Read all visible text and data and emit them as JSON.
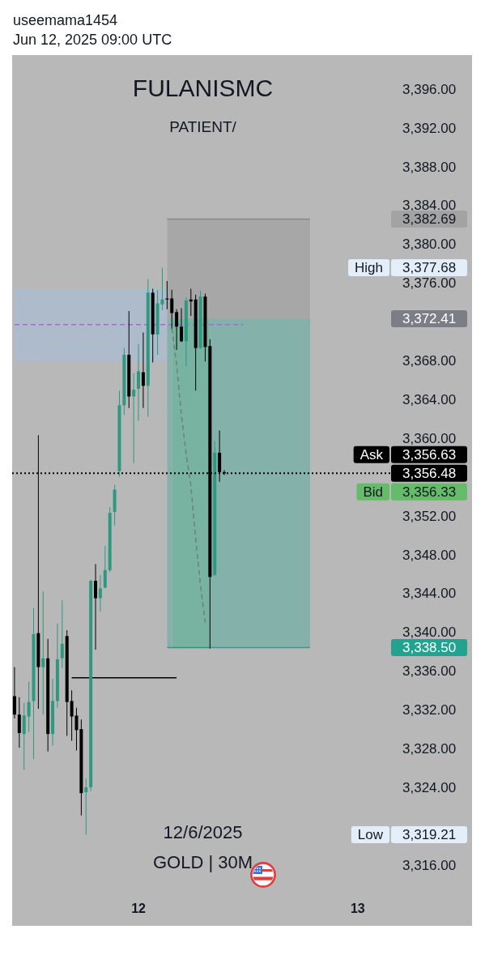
{
  "chart_data": {
    "type": "candlestick",
    "title": "FULANISMC",
    "subtitle": "PATIENT/",
    "categories": [
      null,
      null,
      null,
      null,
      null,
      null,
      null,
      null,
      null,
      null,
      null,
      null,
      null,
      null,
      null,
      null,
      null,
      null,
      null,
      null,
      null,
      null,
      null,
      null,
      null,
      null,
      "12",
      null,
      null,
      null,
      null,
      null,
      null,
      null,
      null,
      null,
      null,
      null,
      null,
      null,
      null,
      null,
      null,
      null,
      null,
      null,
      null,
      null,
      null,
      null,
      null,
      null,
      null,
      null,
      null,
      null,
      null,
      null,
      null,
      null,
      null,
      null,
      null,
      null,
      null,
      null,
      null,
      null,
      null,
      null,
      null,
      null,
      "13",
      null,
      null,
      null,
      null,
      null,
      null,
      null
    ],
    "series": [
      {
        "ohlc": [
          [
            3333.5,
            3336.5,
            3331.2,
            3331.6
          ],
          [
            3331.6,
            3333.4,
            3328.2,
            3329.7
          ],
          [
            3329.6,
            3332.8,
            3325.9,
            3331.5
          ],
          [
            3331.4,
            3335.0,
            3329.8,
            3332.9
          ],
          [
            3333.0,
            3342.6,
            3327.0,
            3339.9
          ],
          [
            3340.0,
            3360.4,
            3332.2,
            3336.5
          ],
          [
            3336.5,
            3344.3,
            3331.6,
            3337.4
          ],
          [
            3337.4,
            3339.4,
            3327.8,
            3329.6
          ],
          [
            3329.6,
            3335.3,
            3328.4,
            3333.0
          ],
          [
            3333.0,
            3341.0,
            3332.3,
            3337.3
          ],
          [
            3337.4,
            3343.4,
            3336.4,
            3338.9
          ],
          [
            3339.7,
            3340.3,
            3329.4,
            3332.9
          ],
          [
            3333.0,
            3334.1,
            3328.9,
            3331.4
          ],
          [
            3331.5,
            3332.3,
            3327.9,
            3330.0
          ],
          [
            3330.1,
            3331.1,
            3321.2,
            3323.5
          ],
          [
            3323.6,
            3325.0,
            3319.21,
            3324.1
          ],
          [
            3324.1,
            3345.5,
            3323.7,
            3345.4
          ],
          [
            3345.4,
            3347.1,
            3338.3,
            3343.6
          ],
          [
            3343.6,
            3346.0,
            3342.2,
            3344.6
          ],
          [
            3344.7,
            3349.0,
            3344.6,
            3346.5
          ],
          [
            3346.5,
            3353.0,
            3346.3,
            3352.4
          ],
          [
            3352.5,
            3355.3,
            3351.1,
            3354.8
          ],
          [
            3356.7,
            3365.0,
            3356.1,
            3363.5
          ],
          [
            3363.5,
            3369.4,
            3362.5,
            3368.7
          ],
          [
            3368.7,
            3373.2,
            3363.2,
            3364.4
          ],
          [
            3364.4,
            3366.8,
            3357.5,
            3365.1
          ],
          [
            3365.2,
            3369.8,
            3361.9,
            3367.0
          ],
          [
            3366.9,
            3371.0,
            3363.2,
            3365.5
          ],
          [
            3365.5,
            3376.5,
            3362.3,
            3375.1
          ],
          [
            3375.1,
            3375.5,
            3367.9,
            3370.8
          ],
          [
            3370.8,
            3375.4,
            3368.7,
            3374.0
          ],
          [
            3373.9,
            3377.68,
            3373.3,
            3374.4
          ],
          [
            3374.5,
            3376.3,
            3373.4,
            3374.4
          ],
          [
            3374.5,
            3375.4,
            3371.4,
            3373.0
          ],
          [
            3373.1,
            3373.4,
            3369.2,
            3371.6
          ],
          [
            3371.6,
            3373.5,
            3370.0,
            3370.1
          ],
          [
            3370.1,
            3374.6,
            3367.5,
            3374.3
          ],
          [
            3374.4,
            3375.5,
            3372.7,
            3374.2
          ],
          [
            3374.4,
            3374.9,
            3365.0,
            3369.4
          ],
          [
            3369.4,
            3375.3,
            3369.3,
            3374.7
          ],
          [
            3374.7,
            3375.0,
            3368.0,
            3369.5
          ],
          [
            3369.6,
            3370.3,
            3338.4,
            3345.8
          ],
          [
            3346.0,
            3359.8,
            3345.9,
            3358.6
          ],
          [
            3358.6,
            3360.9,
            3355.6,
            3356.6
          ],
          [
            3356.6,
            3356.8,
            3356.3,
            3356.48
          ],
          null,
          null,
          null,
          null,
          null,
          null,
          null,
          null,
          null,
          null,
          null,
          null,
          null,
          null,
          null,
          null,
          null,
          null,
          null,
          null,
          null,
          null,
          null,
          null,
          null,
          null,
          null,
          null,
          null,
          null,
          null,
          null,
          null,
          null,
          null
        ],
        "colors": [
          "#000000",
          "#000000",
          "#2e9980",
          "#2e9980",
          "#2e9980",
          "#000000",
          "#2e9980",
          "#000000",
          "#2e9980",
          "#2e9980",
          "#2e9980",
          "#000000",
          "#000000",
          "#000000",
          "#000000",
          "#2e9980",
          "#2e9980",
          "#000000",
          "#2e9980",
          "#2e9980",
          "#2e9980",
          "#2e9980",
          "#2e9980",
          "#2e9980",
          "#000000",
          "#2e9980",
          "#2e9980",
          "#000000",
          "#2e9980",
          "#000000",
          "#2e9980",
          "#2e9980",
          "#000000",
          "#000000",
          "#000000",
          "#000000",
          "#2e9980",
          "#000000",
          "#000000",
          "#2e9980",
          "#000000",
          "#000000",
          "#2e9980",
          "#000000",
          "#000000",
          null,
          null,
          null,
          null,
          null,
          null,
          null,
          null,
          null,
          null,
          null,
          null,
          null,
          null,
          null,
          null,
          null,
          null,
          null,
          null,
          null,
          null,
          null,
          null,
          null,
          null,
          null,
          null,
          null,
          null,
          null,
          null,
          null,
          null,
          null
        ]
      },
      {
        "type": "line",
        "color": "#878787",
        "values": [
          null,
          null,
          null,
          null,
          null,
          null,
          null,
          null,
          null,
          null,
          null,
          null,
          null,
          null,
          null,
          null,
          null,
          null,
          null,
          null,
          null,
          null,
          null,
          null,
          null,
          null,
          null,
          null,
          null,
          null,
          null,
          null,
          3382.69,
          3382.69,
          3382.69,
          3382.69,
          3382.69,
          3382.69,
          3382.69,
          3382.69,
          3382.69,
          3382.69,
          3382.69,
          3382.69,
          3382.69,
          3382.69,
          3382.69,
          3382.69,
          3382.69,
          3382.69,
          3382.69,
          3382.69,
          3382.69,
          3382.69,
          3382.69,
          3382.69,
          3382.69,
          3382.69,
          3382.69,
          3382.69,
          3382.69,
          3382.69,
          3382.69,
          null,
          null,
          null,
          null,
          null,
          null,
          null,
          null,
          null,
          null,
          null,
          null,
          null,
          null,
          null,
          null,
          null
        ],
        "lower": [
          null,
          null,
          null,
          null,
          null,
          null,
          null,
          null,
          null,
          null,
          null,
          null,
          null,
          null,
          null,
          null,
          null,
          null,
          null,
          null,
          null,
          null,
          null,
          null,
          null,
          null,
          null,
          null,
          null,
          null,
          null,
          null,
          3372.41,
          3372.41,
          3372.41,
          3372.41,
          3372.41,
          3372.41,
          3372.41,
          3372.41,
          3372.41,
          3372.41,
          3372.41,
          3372.41,
          3372.41,
          3372.41,
          3372.41,
          3372.41,
          3372.41,
          3372.41,
          3372.41,
          3372.41,
          3372.41,
          3372.41,
          3372.41,
          3372.41,
          3372.41,
          3372.41,
          3372.41,
          3372.41,
          3372.41,
          3372.41,
          3372.41,
          null,
          null,
          null,
          null,
          null,
          null,
          null,
          null,
          null,
          null,
          null,
          null,
          null,
          null,
          null,
          null,
          null
        ],
        "upper": [
          null,
          null,
          null,
          null,
          null,
          null,
          null,
          null,
          null,
          null,
          null,
          null,
          null,
          null,
          null,
          null,
          null,
          null,
          null,
          null,
          null,
          null,
          null,
          null,
          null,
          null,
          null,
          null,
          null,
          null,
          null,
          null,
          3382.69,
          3382.69,
          3382.69,
          3382.69,
          3382.69,
          3382.69,
          3382.69,
          3382.69,
          3382.69,
          3382.69,
          3382.69,
          3382.69,
          3382.69,
          3382.69,
          3382.69,
          3382.69,
          3382.69,
          3382.69,
          3382.69,
          3382.69,
          3382.69,
          3382.69,
          3382.69,
          3382.69,
          3382.69,
          3382.69,
          3382.69,
          3382.69,
          3382.69,
          3382.69,
          3382.69,
          null,
          null,
          null,
          null,
          null,
          null,
          null,
          null,
          null,
          null,
          null,
          null,
          null,
          null,
          null,
          null,
          null
        ]
      },
      {
        "type": "line",
        "color": "#22a38f",
        "values": [
          null,
          null,
          null,
          null,
          null,
          null,
          null,
          null,
          null,
          null,
          null,
          null,
          null,
          null,
          null,
          null,
          null,
          null,
          null,
          null,
          null,
          null,
          null,
          null,
          null,
          null,
          null,
          null,
          null,
          null,
          null,
          null,
          3338.5,
          3338.5,
          null,
          null,
          null,
          null,
          null,
          null,
          null,
          3338.5,
          3338.5,
          3338.5,
          3338.5,
          3338.5,
          3338.5,
          3338.5,
          3338.5,
          3338.5,
          3338.5,
          3338.5,
          3338.5,
          3338.5,
          3338.5,
          3338.5,
          3338.5,
          3338.5,
          3338.5,
          3338.5,
          3338.5,
          3338.5,
          3338.5,
          null,
          null,
          null,
          null,
          null,
          null,
          null,
          null,
          null,
          null,
          null,
          null,
          null,
          null,
          null,
          null,
          null
        ],
        "lower": [
          null,
          null,
          null,
          null,
          null,
          null,
          null,
          null,
          null,
          null,
          null,
          null,
          null,
          null,
          null,
          null,
          null,
          null,
          null,
          null,
          null,
          null,
          null,
          null,
          null,
          null,
          null,
          null,
          null,
          null,
          null,
          null,
          3338.5,
          3338.5,
          null,
          null,
          null,
          null,
          null,
          null,
          null,
          3338.5,
          3338.5,
          3338.5,
          3338.5,
          3338.5,
          3338.5,
          3338.5,
          3338.5,
          3338.5,
          3338.5,
          3338.5,
          3338.5,
          3338.5,
          3338.5,
          3338.5,
          3338.5,
          3338.5,
          3338.5,
          3338.5,
          3338.5,
          3338.5,
          3338.5,
          null,
          null,
          null,
          null,
          null,
          null,
          null,
          null,
          null,
          null,
          null,
          null,
          null,
          null,
          null,
          null,
          null
        ],
        "upper": [
          null,
          null,
          null,
          null,
          null,
          null,
          null,
          null,
          null,
          null,
          null,
          null,
          null,
          null,
          null,
          null,
          null,
          null,
          null,
          null,
          null,
          null,
          null,
          null,
          null,
          null,
          null,
          null,
          null,
          null,
          null,
          null,
          3372.41,
          3372.41,
          null,
          null,
          null,
          null,
          null,
          null,
          null,
          3372.41,
          3372.41,
          3372.41,
          3372.41,
          3372.41,
          3372.41,
          3372.41,
          3372.41,
          3372.41,
          3372.41,
          3372.41,
          3372.41,
          3372.41,
          3372.41,
          3372.41,
          3372.41,
          3372.41,
          3372.41,
          3372.41,
          3372.41,
          3372.41,
          3372.41,
          null,
          null,
          null,
          null,
          null,
          null,
          null,
          null,
          null,
          null,
          null,
          null,
          null,
          null,
          null,
          null,
          null
        ]
      },
      {
        "type": "line",
        "color": "#00aa79",
        "values": [
          null,
          null,
          null,
          null,
          null,
          null,
          null,
          null,
          null,
          null,
          null,
          null,
          null,
          null,
          null,
          null,
          null,
          null,
          null,
          null,
          null,
          null,
          null,
          null,
          null,
          null,
          null,
          null,
          null,
          null,
          null,
          null,
          null,
          3338.5,
          3338.5,
          3338.5,
          3338.5,
          3338.5,
          3338.5,
          3338.5,
          3338.5,
          3338.5,
          null,
          null,
          null,
          null,
          null,
          null,
          null,
          null,
          null,
          null,
          null,
          null,
          null,
          null,
          null,
          null,
          null,
          null,
          null,
          null,
          null,
          null,
          null,
          null,
          null,
          null,
          null,
          null,
          null,
          null,
          null,
          null,
          null,
          null,
          null,
          null,
          null,
          null
        ],
        "lower": [
          null,
          null,
          null,
          null,
          null,
          null,
          null,
          null,
          null,
          null,
          null,
          null,
          null,
          null,
          null,
          null,
          null,
          null,
          null,
          null,
          null,
          null,
          null,
          null,
          null,
          null,
          null,
          null,
          null,
          null,
          null,
          null,
          null,
          3338.5,
          3338.5,
          3338.5,
          3338.5,
          3338.5,
          3338.5,
          3338.5,
          3338.5,
          3338.5,
          null,
          null,
          null,
          null,
          null,
          null,
          null,
          null,
          null,
          null,
          null,
          null,
          null,
          null,
          null,
          null,
          null,
          null,
          null,
          null,
          null,
          null,
          null,
          null,
          null,
          null,
          null,
          null,
          null,
          null,
          null,
          null,
          null,
          null,
          null,
          null,
          null,
          null
        ],
        "upper": [
          null,
          null,
          null,
          null,
          null,
          null,
          null,
          null,
          null,
          null,
          null,
          null,
          null,
          null,
          null,
          null,
          null,
          null,
          null,
          null,
          null,
          null,
          null,
          null,
          null,
          null,
          null,
          null,
          null,
          null,
          null,
          null,
          null,
          3372.41,
          3372.41,
          3372.41,
          3372.41,
          3372.41,
          3372.41,
          3372.41,
          3372.41,
          3372.41,
          null,
          null,
          null,
          null,
          null,
          null,
          null,
          null,
          null,
          null,
          null,
          null,
          null,
          null,
          null,
          null,
          null,
          null,
          null,
          null,
          null,
          null,
          null,
          null,
          null,
          null,
          null,
          null,
          null,
          null,
          null,
          null,
          null,
          null,
          null,
          null,
          null,
          null
        ]
      },
      {
        "type": "line",
        "color": "#99c1ee",
        "values": [
          3375.4,
          3375.4,
          3375.4,
          3375.4,
          3375.4,
          3375.4,
          3375.4,
          3375.4,
          3375.4,
          3375.4,
          3375.4,
          3375.4,
          3375.4,
          3375.4,
          3375.4,
          3375.4,
          3375.4,
          3375.4,
          3375.4,
          3375.4,
          3375.4,
          3375.4,
          3375.4,
          3375.4,
          3375.4,
          3375.4,
          3375.4,
          3375.4,
          3375.4,
          3375.4,
          3375.4,
          3375.4,
          3375.4,
          null,
          null,
          null,
          null,
          null,
          null,
          null,
          null,
          null,
          null,
          null,
          null,
          null,
          null,
          null,
          null,
          null,
          null,
          null,
          null,
          null,
          null,
          null,
          null,
          null,
          null,
          null,
          null,
          null,
          null,
          null,
          null,
          null,
          null,
          null,
          null,
          null,
          null,
          null,
          null,
          null,
          null,
          null,
          null,
          null,
          null,
          null
        ],
        "lower": [
          3368.0,
          3368.0,
          3368.0,
          3368.0,
          3368.0,
          3368.0,
          3368.0,
          3368.0,
          3368.0,
          3368.0,
          3368.0,
          3368.0,
          3368.0,
          3368.0,
          3368.0,
          3368.0,
          3368.0,
          3368.0,
          3368.0,
          3368.0,
          3368.0,
          3368.0,
          3368.0,
          3368.0,
          3368.0,
          3368.0,
          3368.0,
          3368.0,
          3368.0,
          3368.0,
          3368.0,
          3368.0,
          3368.0,
          null,
          null,
          null,
          null,
          null,
          null,
          null,
          null,
          null,
          null,
          null,
          null,
          null,
          null,
          null,
          null,
          null,
          null,
          null,
          null,
          null,
          null,
          null,
          null,
          null,
          null,
          null,
          null,
          null,
          null,
          null,
          null,
          null,
          null,
          null,
          null,
          null,
          null,
          null,
          null,
          null,
          null,
          null,
          null,
          null,
          null,
          null
        ],
        "upper": [
          3375.4,
          3375.4,
          3375.4,
          3375.4,
          3375.4,
          3375.4,
          3375.4,
          3375.4,
          3375.4,
          3375.4,
          3375.4,
          3375.4,
          3375.4,
          3375.4,
          3375.4,
          3375.4,
          3375.4,
          3375.4,
          3375.4,
          3375.4,
          3375.4,
          3375.4,
          3375.4,
          3375.4,
          3375.4,
          3375.4,
          3375.4,
          3375.4,
          3375.4,
          3375.4,
          3375.4,
          3375.4,
          3375.4,
          null,
          null,
          null,
          null,
          null,
          null,
          null,
          null,
          null,
          null,
          null,
          null,
          null,
          null,
          null,
          null,
          null,
          null,
          null,
          null,
          null,
          null,
          null,
          null,
          null,
          null,
          null,
          null,
          null,
          null,
          null,
          null,
          null,
          null,
          null,
          null,
          null,
          null,
          null,
          null,
          null,
          null,
          null,
          null,
          null,
          null,
          null
        ]
      },
      {
        "type": "line",
        "color": "#9b72c8",
        "line_style": "dashed",
        "values": [
          3371.8,
          3371.8,
          3371.8,
          3371.8,
          3371.8,
          3371.8,
          3371.8,
          3371.8,
          3371.8,
          3371.8,
          3371.8,
          3371.8,
          3371.8,
          3371.8,
          3371.8,
          3371.8,
          3371.8,
          3371.8,
          3371.8,
          3371.8,
          3371.8,
          3371.8,
          3371.8,
          3371.8,
          3371.8,
          3371.8,
          3371.8,
          3371.8,
          3371.8,
          3371.8,
          3371.8,
          3371.8,
          3371.8,
          3371.8,
          3371.8,
          3371.8,
          3371.8,
          3371.8,
          3371.8,
          3371.8,
          3371.8,
          3371.8,
          3371.8,
          3371.8,
          3371.8,
          3371.8,
          3371.8,
          3371.8,
          3371.8,
          null,
          null,
          null,
          null,
          null,
          null,
          null,
          null,
          null,
          null,
          null,
          null,
          null,
          null,
          null,
          null,
          null,
          null,
          null,
          null,
          null,
          null,
          null,
          null,
          null,
          null,
          null,
          null,
          null,
          null,
          null
        ]
      },
      {
        "type": "line",
        "color": "#000000",
        "values": [
          null,
          null,
          null,
          null,
          null,
          null,
          null,
          null,
          null,
          null,
          null,
          null,
          3335.4,
          3335.4,
          3335.4,
          3335.4,
          3335.4,
          3335.4,
          3335.4,
          3335.4,
          3335.4,
          3335.4,
          3335.4,
          3335.4,
          3335.4,
          3335.4,
          3335.4,
          3335.4,
          3335.4,
          3335.4,
          3335.4,
          3335.4,
          3335.4,
          3335.4,
          3335.4,
          null,
          null,
          null,
          null,
          null,
          null,
          null,
          null,
          null,
          null,
          null,
          null,
          null,
          null,
          null,
          null,
          null,
          null,
          null,
          null,
          null,
          null,
          null,
          null,
          null,
          null,
          null,
          null,
          null,
          null,
          null,
          null,
          null,
          null,
          null,
          null,
          null,
          null,
          null,
          null,
          null,
          null,
          null,
          null,
          null
        ]
      },
      {
        "type": "line",
        "color": "#6f7f7a",
        "line_style": "dashed",
        "values": [
          null,
          null,
          null,
          null,
          null,
          null,
          null,
          null,
          null,
          null,
          null,
          null,
          null,
          null,
          null,
          null,
          null,
          null,
          null,
          null,
          null,
          null,
          null,
          null,
          null,
          null,
          null,
          null,
          null,
          null,
          null,
          null,
          null,
          3371.4,
          3367.7,
          3362.5,
          3358.5,
          3355.2,
          3349.7,
          3345.0,
          3341.1,
          null,
          null,
          null,
          null,
          null,
          null,
          null,
          null,
          null,
          null,
          null,
          null,
          null,
          null,
          null,
          null,
          null,
          null,
          null,
          null,
          null,
          null,
          null,
          null,
          null,
          null,
          null,
          null,
          null,
          null,
          null,
          null,
          null,
          null,
          null,
          null,
          null,
          null,
          null
        ]
      }
    ],
    "ylim": [
      3316,
      3399.6
    ],
    "yticks": [
      {
        "value": 3316,
        "label": "3,316.00"
      },
      {
        "value": 3324,
        "label": "3,324.00"
      },
      {
        "value": 3328,
        "label": "3,328.00"
      },
      {
        "value": 3332,
        "label": "3,332.00"
      },
      {
        "value": 3336,
        "label": "3,336.00"
      },
      {
        "value": 3340,
        "label": "3,340.00"
      },
      {
        "value": 3344,
        "label": "3,344.00"
      },
      {
        "value": 3348,
        "label": "3,348.00"
      },
      {
        "value": 3352,
        "label": "3,352.00"
      },
      {
        "value": 3360,
        "label": "3,360.00"
      },
      {
        "value": 3364,
        "label": "3,364.00"
      },
      {
        "value": 3368,
        "label": "3,368.00"
      },
      {
        "value": 3376,
        "label": "3,376.00"
      },
      {
        "value": 3380,
        "label": "3,380.00"
      },
      {
        "value": 3384,
        "label": "3,384.00"
      },
      {
        "value": 3388,
        "label": "3,388.00"
      },
      {
        "value": 3392,
        "label": "3,392.00"
      },
      {
        "value": 3396,
        "label": "3,396.00"
      }
    ],
    "ref_lines": [
      {
        "axis": "y",
        "value": 3356.48,
        "label": "3,356.48",
        "color": "#000000",
        "line_style": "dotted"
      }
    ],
    "annotations": [
      "useemama1454",
      "Jun 12, 2025 09:00 UTC",
      "12/6/2025",
      "GOLD | 30M",
      "3,382.69",
      "High",
      "3,377.68",
      "3,372.41",
      "Ask",
      "3,356.63",
      "Bid",
      "3,356.33",
      "3,338.50",
      "Low",
      "3,319.21"
    ]
  }
}
